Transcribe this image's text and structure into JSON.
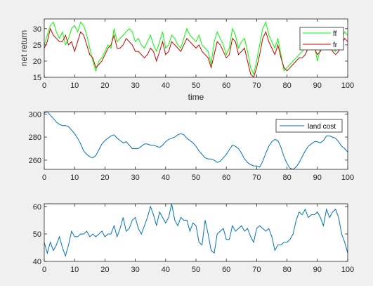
{
  "chart_data": [
    {
      "type": "line",
      "xlabel": "time",
      "ylabel": "net return",
      "xlim": [
        0,
        100
      ],
      "ylim": [
        15,
        33
      ],
      "xticks": [
        0,
        10,
        20,
        30,
        40,
        50,
        60,
        70,
        80,
        90,
        100
      ],
      "yticks": [
        15,
        20,
        25,
        30
      ],
      "legend": "top-right",
      "series": [
        {
          "name": "ff",
          "color": "#00ff00",
          "x": [
            0,
            1,
            2,
            3,
            4,
            5,
            6,
            7,
            8,
            9,
            10,
            11,
            12,
            13,
            14,
            15,
            16,
            17,
            18,
            19,
            20,
            21,
            22,
            23,
            24,
            25,
            26,
            27,
            28,
            29,
            30,
            31,
            32,
            33,
            34,
            35,
            36,
            37,
            38,
            39,
            40,
            41,
            42,
            43,
            44,
            45,
            46,
            47,
            48,
            49,
            50,
            51,
            52,
            53,
            54,
            55,
            56,
            57,
            58,
            59,
            60,
            61,
            62,
            63,
            64,
            65,
            66,
            67,
            68,
            69,
            70,
            71,
            72,
            73,
            74,
            75,
            76,
            77,
            78,
            79,
            80,
            81,
            82,
            83,
            84,
            85,
            86,
            87,
            88,
            89,
            90,
            91,
            92,
            93,
            94,
            95,
            96,
            97,
            98,
            99,
            100
          ],
          "values": [
            25,
            28,
            31,
            32,
            29,
            27,
            29,
            25,
            27,
            30,
            31,
            29,
            32,
            31,
            28,
            24,
            20,
            17,
            20,
            21,
            23,
            25,
            24,
            30,
            26,
            27,
            28,
            29,
            30,
            29,
            26,
            27,
            25,
            24,
            26,
            28,
            25,
            23,
            26,
            29,
            24,
            25,
            28,
            27,
            25,
            24,
            27,
            30,
            28,
            27,
            26,
            28,
            25,
            24,
            23,
            19,
            26,
            29,
            27,
            25,
            22,
            24,
            30,
            28,
            24,
            26,
            27,
            23,
            18,
            16,
            20,
            25,
            30,
            32,
            28,
            26,
            24,
            27,
            22,
            17,
            18,
            19,
            20,
            21,
            22,
            23,
            24,
            26,
            27,
            25,
            20,
            24,
            27,
            28,
            26,
            24,
            23,
            25,
            27,
            29,
            28
          ]
        },
        {
          "name": "fr",
          "color": "#cc0000",
          "x": [
            0,
            1,
            2,
            3,
            4,
            5,
            6,
            7,
            8,
            9,
            10,
            11,
            12,
            13,
            14,
            15,
            16,
            17,
            18,
            19,
            20,
            21,
            22,
            23,
            24,
            25,
            26,
            27,
            28,
            29,
            30,
            31,
            32,
            33,
            34,
            35,
            36,
            37,
            38,
            39,
            40,
            41,
            42,
            43,
            44,
            45,
            46,
            47,
            48,
            49,
            50,
            51,
            52,
            53,
            54,
            55,
            56,
            57,
            58,
            59,
            60,
            61,
            62,
            63,
            64,
            65,
            66,
            67,
            68,
            69,
            70,
            71,
            72,
            73,
            74,
            75,
            76,
            77,
            78,
            79,
            80,
            81,
            82,
            83,
            84,
            85,
            86,
            87,
            88,
            89,
            90,
            91,
            92,
            93,
            94,
            95,
            96,
            97,
            98,
            99,
            100
          ],
          "values": [
            24,
            26,
            30,
            28,
            27,
            26,
            26,
            28,
            25,
            26,
            23,
            26,
            29,
            28,
            25,
            22,
            21,
            18,
            19,
            20,
            22,
            24,
            25,
            28,
            24,
            24,
            25,
            27,
            26,
            25,
            23,
            23,
            22,
            21,
            22,
            24,
            23,
            20,
            23,
            26,
            22,
            23,
            26,
            25,
            24,
            23,
            25,
            27,
            26,
            25,
            24,
            25,
            23,
            22,
            21,
            18,
            22,
            26,
            25,
            23,
            21,
            22,
            27,
            26,
            22,
            23,
            24,
            20,
            16,
            15,
            18,
            22,
            27,
            29,
            26,
            24,
            22,
            25,
            21,
            18,
            17,
            18,
            19,
            20,
            21,
            21,
            22,
            24,
            25,
            24,
            22,
            23,
            25,
            26,
            25,
            23,
            22,
            23,
            25,
            27,
            26
          ]
        }
      ]
    },
    {
      "type": "line",
      "xlim": [
        0,
        100
      ],
      "ylim": [
        252,
        302
      ],
      "xticks": [
        0,
        10,
        20,
        30,
        40,
        50,
        60,
        70,
        80,
        90,
        100
      ],
      "yticks": [
        260,
        280,
        300
      ],
      "legend": "top-right",
      "series": [
        {
          "name": "land cost",
          "color": "#0072bd",
          "x": [
            0,
            1,
            2,
            3,
            4,
            5,
            6,
            7,
            8,
            9,
            10,
            11,
            12,
            13,
            14,
            15,
            16,
            17,
            18,
            19,
            20,
            21,
            22,
            23,
            24,
            25,
            26,
            27,
            28,
            29,
            30,
            31,
            32,
            33,
            34,
            35,
            36,
            37,
            38,
            39,
            40,
            41,
            42,
            43,
            44,
            45,
            46,
            47,
            48,
            49,
            50,
            51,
            52,
            53,
            54,
            55,
            56,
            57,
            58,
            59,
            60,
            61,
            62,
            63,
            64,
            65,
            66,
            67,
            68,
            69,
            70,
            71,
            72,
            73,
            74,
            75,
            76,
            77,
            78,
            79,
            80,
            81,
            82,
            83,
            84,
            85,
            86,
            87,
            88,
            89,
            90,
            91,
            92,
            93,
            94,
            95,
            96,
            97,
            98,
            99,
            100
          ],
          "values": [
            301,
            302,
            299,
            296,
            293,
            291,
            290,
            290,
            289,
            286,
            283,
            279,
            274,
            268,
            265,
            263,
            262,
            264,
            269,
            274,
            277,
            279,
            281,
            282,
            279,
            277,
            275,
            276,
            273,
            270,
            270,
            270,
            272,
            274,
            274,
            273,
            273,
            272,
            271,
            273,
            276,
            278,
            279,
            280,
            282,
            283,
            282,
            279,
            277,
            275,
            272,
            268,
            265,
            262,
            261,
            261,
            260,
            258,
            259,
            262,
            265,
            269,
            273,
            272,
            270,
            266,
            261,
            258,
            256,
            255,
            255,
            254,
            259,
            266,
            272,
            276,
            278,
            277,
            271,
            263,
            257,
            253,
            252,
            254,
            258,
            263,
            268,
            272,
            274,
            276,
            276,
            275,
            277,
            281,
            281,
            280,
            279,
            276,
            272,
            270,
            267
          ]
        }
      ]
    },
    {
      "type": "line",
      "xlim": [
        0,
        100
      ],
      "ylim": [
        40,
        61
      ],
      "xticks": [
        0,
        10,
        20,
        30,
        40,
        50,
        60,
        70,
        80,
        90,
        100
      ],
      "yticks": [
        40,
        50,
        60
      ],
      "legend": "none",
      "series": [
        {
          "color": "#0072bd",
          "x": [
            0,
            1,
            2,
            3,
            4,
            5,
            6,
            7,
            8,
            9,
            10,
            11,
            12,
            13,
            14,
            15,
            16,
            17,
            18,
            19,
            20,
            21,
            22,
            23,
            24,
            25,
            26,
            27,
            28,
            29,
            30,
            31,
            32,
            33,
            34,
            35,
            36,
            37,
            38,
            39,
            40,
            41,
            42,
            43,
            44,
            45,
            46,
            47,
            48,
            49,
            50,
            51,
            52,
            53,
            54,
            55,
            56,
            57,
            58,
            59,
            60,
            61,
            62,
            63,
            64,
            65,
            66,
            67,
            68,
            69,
            70,
            71,
            72,
            73,
            74,
            75,
            76,
            77,
            78,
            79,
            80,
            81,
            82,
            83,
            84,
            85,
            86,
            87,
            88,
            89,
            90,
            91,
            92,
            93,
            94,
            95,
            96,
            97,
            98,
            99,
            100
          ],
          "values": [
            47,
            43,
            47,
            44,
            46,
            49,
            45,
            42,
            46,
            51,
            49,
            49,
            50,
            50,
            51,
            49,
            50,
            49,
            50,
            51,
            49,
            50,
            50,
            53,
            49,
            52,
            56,
            51,
            52,
            55,
            56,
            52,
            50,
            53,
            56,
            60,
            57,
            53,
            58,
            56,
            54,
            56,
            61,
            55,
            53,
            56,
            55,
            55,
            51,
            54,
            53,
            47,
            46,
            55,
            50,
            44,
            43,
            50,
            51,
            52,
            48,
            48,
            53,
            51,
            52,
            53,
            51,
            52,
            49,
            47,
            52,
            53,
            52,
            51,
            52,
            49,
            44,
            46,
            46,
            47,
            47,
            48,
            50,
            55,
            58,
            57,
            59,
            56,
            57,
            57,
            58,
            56,
            53,
            59,
            56,
            58,
            59,
            56,
            50,
            47,
            43
          ]
        }
      ]
    }
  ]
}
